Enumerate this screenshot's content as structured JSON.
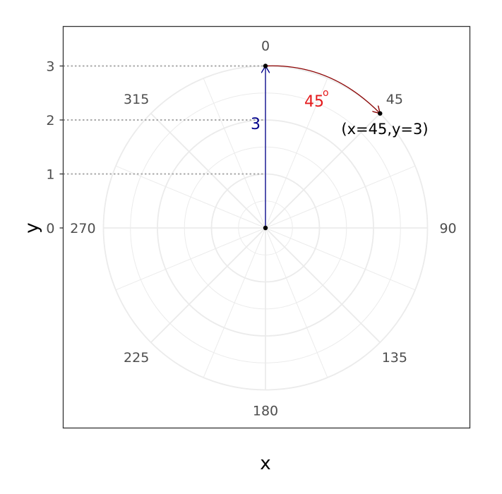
{
  "chart_data": {
    "type": "scatter",
    "coord": "polar",
    "xlabel": "x",
    "ylabel": "y",
    "xlim": [
      0,
      360
    ],
    "ylim": [
      0,
      3
    ],
    "y_ticks": [
      "0",
      "1",
      "2",
      "3"
    ],
    "angle_ticks": [
      "0",
      "45",
      "90",
      "135",
      "180",
      "225",
      "270",
      "315"
    ],
    "points": [
      {
        "x": 0,
        "y": 0
      },
      {
        "x": 0,
        "y": 3
      },
      {
        "x": 45,
        "y": 3
      }
    ],
    "grid": true,
    "annotations": {
      "radius_label": "3",
      "angle_label": "45",
      "angle_unit_symbol": "o",
      "point_label": "(x=45,y=3)"
    },
    "colors": {
      "radius_arrow": "#00008b",
      "angle_arrow": "#8b0000",
      "angle_label": "#e41a1c",
      "grid": "#ebebeb",
      "guide": "#a9a9a9"
    }
  }
}
